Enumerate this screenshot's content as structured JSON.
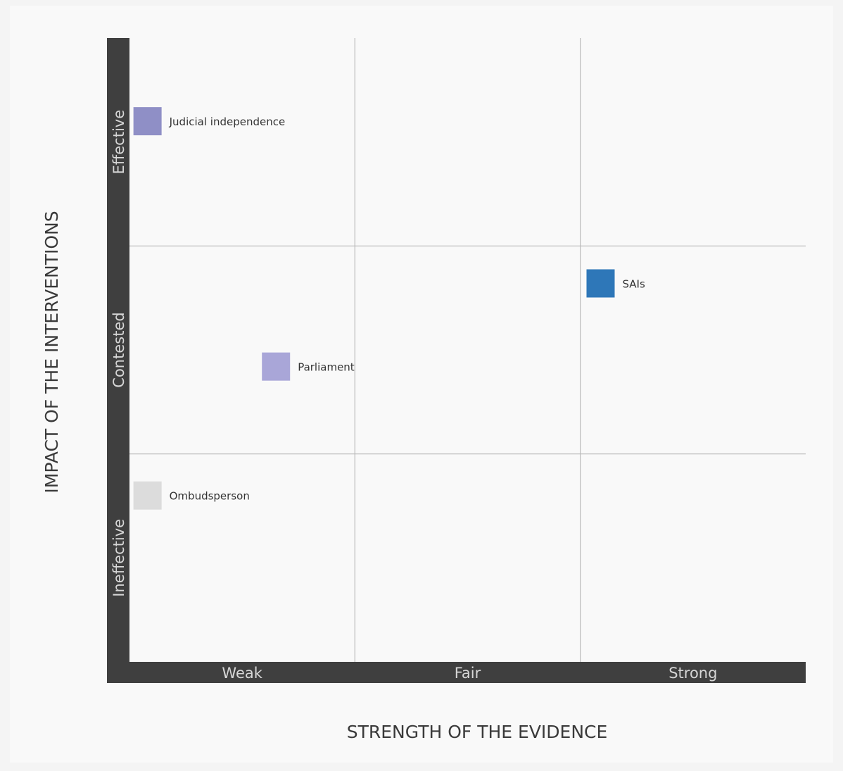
{
  "chart_data": {
    "type": "scatter",
    "xlabel": "STRENGTH OF THE EVIDENCE",
    "ylabel": "IMPACT OF THE INTERVENTIONS",
    "x_categories": [
      "Weak",
      "Fair",
      "Strong"
    ],
    "y_categories": [
      "Ineffective",
      "Contested",
      "Effective"
    ],
    "xlim": [
      0,
      3
    ],
    "ylim": [
      0,
      3
    ],
    "grid": true,
    "points": [
      {
        "label": "Judicial independence",
        "x": 0.08,
        "y": 2.6,
        "color": "#8f8fc6"
      },
      {
        "label": "SAIs",
        "x": 2.09,
        "y": 1.82,
        "color": "#2e77b8"
      },
      {
        "label": "Parliament",
        "x": 0.65,
        "y": 1.42,
        "color": "#a9a6d8"
      },
      {
        "label": "Ombudsperson",
        "x": 0.08,
        "y": 0.8,
        "color": "#dcdcdc"
      }
    ]
  }
}
